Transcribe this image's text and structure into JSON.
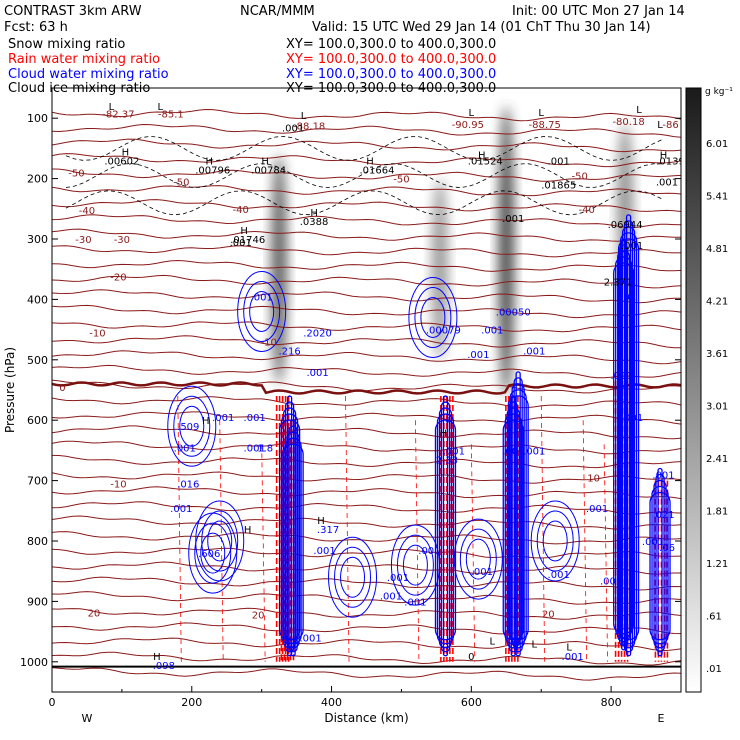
{
  "header": {
    "model": "CONTRAST  3km ARW",
    "org": "NCAR/MMM",
    "init": "Init: 00 UTC Mon 27 Jan 14",
    "fcst": "Fcst:   63 h",
    "valid": "Valid: 15 UTC Wed 29 Jan 14 (01 ChT Thu 30 Jan 14)",
    "fields": [
      {
        "name": "Snow mixing ratio",
        "xy": "XY= 100.0,300.0 to 400.0,300.0",
        "color": "#000000"
      },
      {
        "name": "Rain water mixing ratio",
        "xy": "XY= 100.0,300.0 to 400.0,300.0",
        "color": "#ff0000"
      },
      {
        "name": "Cloud water mixing ratio",
        "xy": "XY= 100.0,300.0 to 400.0,300.0",
        "color": "#0000ff"
      },
      {
        "name": "Cloud ice mixing ratio",
        "xy": "XY= 100.0,300.0 to 400.0,300.0",
        "color": "#000000"
      }
    ]
  },
  "chart_data": {
    "type": "heatmap",
    "title": "",
    "xlabel": "Distance (km)",
    "ylabel": "Pressure (hPa)",
    "xlim": [
      0,
      900
    ],
    "ylim": [
      1050,
      50
    ],
    "x_ticks": [
      "0",
      "200",
      "400",
      "600",
      "800"
    ],
    "y_ticks": [
      "100",
      "200",
      "300",
      "400",
      "500",
      "600",
      "700",
      "800",
      "900",
      "1000"
    ],
    "x_end_labels": {
      "left": "W",
      "right": "E"
    },
    "colorbar": {
      "unit": "g kg⁻¹",
      "levels": [
        "6.01",
        "5.41",
        "4.81",
        "4.21",
        "3.61",
        "3.01",
        "2.41",
        "1.81",
        "1.21",
        ".61",
        ".01"
      ]
    },
    "snow_plumes": [
      {
        "x": 325,
        "top": 160,
        "bottom": 540,
        "strength": 0.85
      },
      {
        "x": 555,
        "top": 200,
        "bottom": 500,
        "strength": 0.55
      },
      {
        "x": 650,
        "top": 80,
        "bottom": 560,
        "strength": 0.95
      },
      {
        "x": 820,
        "top": 110,
        "bottom": 380,
        "strength": 0.6
      }
    ],
    "temperature_isotherms": [
      -50,
      -40,
      -30,
      -20,
      -10,
      0,
      10,
      20
    ],
    "temperature_labels": [
      {
        "text": "-82.37",
        "x": 95,
        "p": 92
      },
      {
        "text": "-85.1",
        "x": 170,
        "p": 92
      },
      {
        "text": "-88.18",
        "x": 368,
        "p": 112
      },
      {
        "text": "-90.95",
        "x": 595,
        "p": 110
      },
      {
        "text": "-88.75",
        "x": 705,
        "p": 110
      },
      {
        "text": "-80.18",
        "x": 825,
        "p": 105
      },
      {
        "text": "-86",
        "x": 885,
        "p": 110
      },
      {
        "text": "-50",
        "x": 185,
        "p": 205
      },
      {
        "text": "-50",
        "x": 500,
        "p": 200
      },
      {
        "text": "-50",
        "x": 755,
        "p": 195
      },
      {
        "text": "-50",
        "x": 35,
        "p": 190
      },
      {
        "text": "-40",
        "x": 50,
        "p": 252
      },
      {
        "text": "-40",
        "x": 270,
        "p": 250
      },
      {
        "text": "-40",
        "x": 765,
        "p": 250
      },
      {
        "text": "-30",
        "x": 45,
        "p": 300
      },
      {
        "text": "-30",
        "x": 100,
        "p": 300
      },
      {
        "text": "-20",
        "x": 95,
        "p": 362
      },
      {
        "text": "-10",
        "x": 65,
        "p": 455
      },
      {
        "text": "-10",
        "x": 310,
        "p": 470
      },
      {
        "text": "0",
        "x": 15,
        "p": 545
      },
      {
        "text": "-10",
        "x": 95,
        "p": 705
      },
      {
        "text": "10",
        "x": 775,
        "p": 695
      },
      {
        "text": "20",
        "x": 60,
        "p": 918
      },
      {
        "text": "20",
        "x": 295,
        "p": 922
      },
      {
        "text": "20",
        "x": 710,
        "p": 920
      }
    ],
    "hl_labels": [
      {
        "text": "L",
        "x": 85,
        "p": 80
      },
      {
        "text": "L",
        "x": 155,
        "p": 80
      },
      {
        "text": "L",
        "x": 360,
        "p": 95
      },
      {
        "text": "L",
        "x": 600,
        "p": 90
      },
      {
        "text": "L",
        "x": 700,
        "p": 90
      },
      {
        "text": "L",
        "x": 840,
        "p": 85
      },
      {
        "text": "L",
        "x": 870,
        "p": 110
      },
      {
        "text": "H",
        "x": 105,
        "p": 155
      },
      {
        "text": "H",
        "x": 225,
        "p": 170
      },
      {
        "text": "H",
        "x": 305,
        "p": 170
      },
      {
        "text": "H",
        "x": 455,
        "p": 170
      },
      {
        "text": "H",
        "x": 615,
        "p": 160
      },
      {
        "text": "H",
        "x": 875,
        "p": 160
      },
      {
        "text": "H",
        "x": 375,
        "p": 255
      },
      {
        "text": "H",
        "x": 275,
        "p": 285
      },
      {
        "text": "H",
        "x": 220,
        "p": 600
      },
      {
        "text": "H",
        "x": 280,
        "p": 780
      },
      {
        "text": "H",
        "x": 560,
        "p": 620
      },
      {
        "text": "H",
        "x": 385,
        "p": 765
      },
      {
        "text": "H",
        "x": 150,
        "p": 990
      },
      {
        "text": "L",
        "x": 630,
        "p": 965
      },
      {
        "text": "L",
        "x": 690,
        "p": 970
      },
      {
        "text": "L",
        "x": 740,
        "p": 975
      }
    ],
    "value_labels": [
      {
        "text": ".001",
        "x": 345,
        "p": 115
      },
      {
        "text": ".00602",
        "x": 100,
        "p": 170
      },
      {
        "text": ".00796",
        "x": 230,
        "p": 185
      },
      {
        "text": ".00784",
        "x": 310,
        "p": 185
      },
      {
        "text": ".01664",
        "x": 465,
        "p": 185
      },
      {
        "text": ".01524",
        "x": 620,
        "p": 170
      },
      {
        "text": ".001",
        "x": 725,
        "p": 170
      },
      {
        "text": ".0139",
        "x": 885,
        "p": 170
      },
      {
        "text": ".01865",
        "x": 725,
        "p": 210
      },
      {
        "text": ".001",
        "x": 880,
        "p": 205
      },
      {
        "text": ".0388",
        "x": 375,
        "p": 270
      },
      {
        "text": ".001",
        "x": 270,
        "p": 305
      },
      {
        "text": ".01746",
        "x": 280,
        "p": 300
      },
      {
        "text": ".001",
        "x": 660,
        "p": 265
      },
      {
        "text": ".06944",
        "x": 820,
        "p": 275
      },
      {
        "text": ".001",
        "x": 830,
        "p": 310
      },
      {
        "text": "2.371",
        "x": 810,
        "p": 370
      },
      {
        "text": ".001",
        "x": 820,
        "p": 395
      },
      {
        "text": ".001",
        "x": 300,
        "p": 395
      },
      {
        "text": ".2020",
        "x": 380,
        "p": 455
      },
      {
        "text": ".00079",
        "x": 560,
        "p": 450
      },
      {
        "text": ".00050",
        "x": 660,
        "p": 420
      },
      {
        "text": ".001",
        "x": 630,
        "p": 450
      },
      {
        "text": ".001",
        "x": 610,
        "p": 490
      },
      {
        "text": ".001",
        "x": 690,
        "p": 485
      },
      {
        "text": ".216",
        "x": 340,
        "p": 485
      },
      {
        "text": ".001",
        "x": 380,
        "p": 520
      },
      {
        "text": ".001",
        "x": 815,
        "p": 525
      },
      {
        "text": ".001",
        "x": 830,
        "p": 595
      },
      {
        "text": ".509",
        "x": 195,
        "p": 610
      },
      {
        "text": ".001",
        "x": 190,
        "p": 645
      },
      {
        "text": ".001",
        "x": 245,
        "p": 595
      },
      {
        "text": ".001",
        "x": 290,
        "p": 595
      },
      {
        "text": ".001",
        "x": 290,
        "p": 645
      },
      {
        "text": "1.8",
        "x": 305,
        "p": 645
      },
      {
        "text": ".4",
        "x": 565,
        "p": 600
      },
      {
        "text": ".001",
        "x": 575,
        "p": 650
      },
      {
        "text": "2.33",
        "x": 565,
        "p": 665
      },
      {
        "text": ".001",
        "x": 660,
        "p": 650
      },
      {
        "text": ".001",
        "x": 690,
        "p": 650
      },
      {
        "text": ".016",
        "x": 195,
        "p": 705
      },
      {
        "text": ".001",
        "x": 185,
        "p": 745
      },
      {
        "text": ".001",
        "x": 875,
        "p": 690
      },
      {
        "text": ".021",
        "x": 875,
        "p": 755
      },
      {
        "text": ".001",
        "x": 780,
        "p": 745
      },
      {
        "text": ".317",
        "x": 395,
        "p": 780
      },
      {
        "text": ".001",
        "x": 390,
        "p": 815
      },
      {
        "text": ".001",
        "x": 860,
        "p": 800
      },
      {
        "text": ".06",
        "x": 880,
        "p": 810
      },
      {
        "text": ".606",
        "x": 225,
        "p": 820
      },
      {
        "text": ".001",
        "x": 540,
        "p": 815
      },
      {
        "text": ".001",
        "x": 725,
        "p": 855
      },
      {
        "text": ".001",
        "x": 800,
        "p": 865
      },
      {
        "text": ".001",
        "x": 495,
        "p": 860
      },
      {
        "text": ".001",
        "x": 485,
        "p": 890
      },
      {
        "text": ".001",
        "x": 520,
        "p": 900
      },
      {
        "text": ".001",
        "x": 615,
        "p": 850
      },
      {
        "text": ".098",
        "x": 160,
        "p": 1005
      },
      {
        "text": ".001",
        "x": 370,
        "p": 960
      },
      {
        "text": ".001",
        "x": 745,
        "p": 990
      },
      {
        "text": "0",
        "x": 600,
        "p": 990
      }
    ],
    "cloud_water_columns": [
      {
        "x": 340,
        "top": 560,
        "bottom": 990
      },
      {
        "x": 345,
        "top": 600,
        "bottom": 990
      },
      {
        "x": 563,
        "top": 560,
        "bottom": 990
      },
      {
        "x": 660,
        "top": 560,
        "bottom": 990
      },
      {
        "x": 667,
        "top": 520,
        "bottom": 990
      },
      {
        "x": 818,
        "top": 300,
        "bottom": 980
      },
      {
        "x": 825,
        "top": 260,
        "bottom": 990
      },
      {
        "x": 870,
        "top": 680,
        "bottom": 990
      }
    ],
    "rain_columns": [
      {
        "x": 330,
        "top": 560,
        "bottom": 1000
      },
      {
        "x": 337,
        "top": 600,
        "bottom": 1000
      },
      {
        "x": 565,
        "top": 560,
        "bottom": 1000
      },
      {
        "x": 658,
        "top": 560,
        "bottom": 1000
      },
      {
        "x": 815,
        "top": 520,
        "bottom": 1000
      },
      {
        "x": 872,
        "top": 700,
        "bottom": 1000
      }
    ]
  }
}
